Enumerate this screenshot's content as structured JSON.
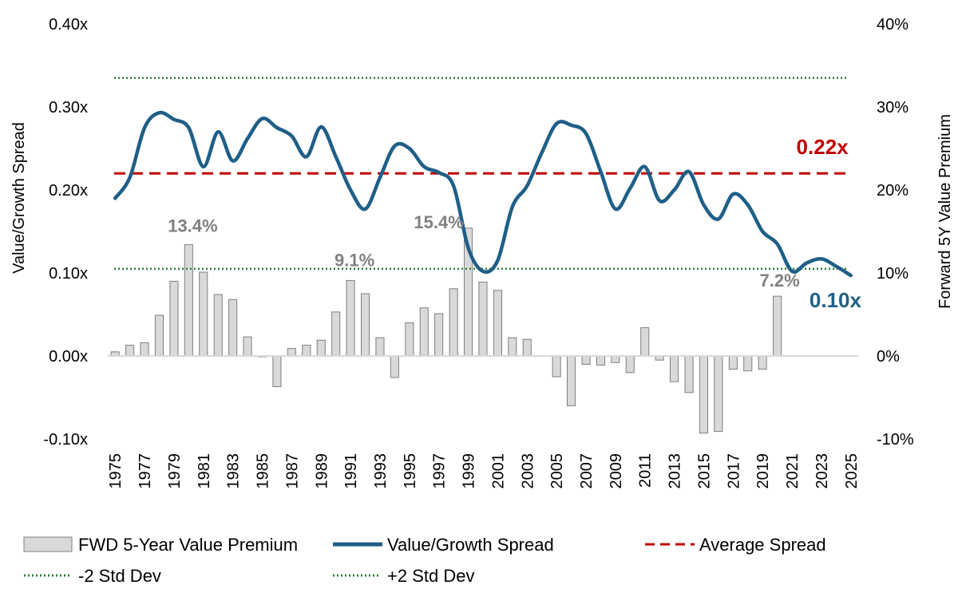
{
  "chart_data": {
    "type": "bar+line",
    "years_start": 1975,
    "years_end": 2025,
    "left_axis": {
      "title": "Value/Growth Spread",
      "ylim": [
        -0.1,
        0.4
      ],
      "ticks": [
        "-0.10x",
        "0.00x",
        "0.10x",
        "0.20x",
        "0.30x",
        "0.40x"
      ],
      "tick_values": [
        -0.1,
        0.0,
        0.1,
        0.2,
        0.3,
        0.4
      ]
    },
    "right_axis": {
      "title": "Forward 5Y Value Premium",
      "ylim": [
        -0.1,
        0.4
      ],
      "ticks": [
        "-10%",
        "0%",
        "10%",
        "20%",
        "30%",
        "40%"
      ],
      "tick_values": [
        -0.1,
        0.0,
        0.1,
        0.2,
        0.3,
        0.4
      ]
    },
    "x_ticks": [
      "1975",
      "1977",
      "1979",
      "1981",
      "1983",
      "1985",
      "1987",
      "1989",
      "1991",
      "1993",
      "1995",
      "1997",
      "1999",
      "2001",
      "2003",
      "2005",
      "2007",
      "2009",
      "2011",
      "2013",
      "2015",
      "2017",
      "2019",
      "2021",
      "2023",
      "2025"
    ],
    "series": [
      {
        "name": "FWD 5-Year Value Premium",
        "kind": "bar",
        "axis": "right",
        "color": "#d9d9d9",
        "x": [
          1975,
          1976,
          1977,
          1978,
          1979,
          1980,
          1981,
          1982,
          1983,
          1984,
          1985,
          1986,
          1987,
          1988,
          1989,
          1990,
          1991,
          1992,
          1993,
          1994,
          1995,
          1996,
          1997,
          1998,
          1999,
          2000,
          2001,
          2002,
          2003,
          2004,
          2005,
          2006,
          2007,
          2008,
          2009,
          2010,
          2011,
          2012,
          2013,
          2014,
          2015,
          2016,
          2017,
          2018,
          2019,
          2020
        ],
        "values": [
          0.005,
          0.013,
          0.016,
          0.049,
          0.09,
          0.134,
          0.101,
          0.074,
          0.068,
          0.023,
          -0.001,
          -0.037,
          0.009,
          0.013,
          0.019,
          0.053,
          0.091,
          0.075,
          0.022,
          -0.026,
          0.04,
          0.058,
          0.051,
          0.081,
          0.154,
          0.089,
          0.079,
          0.022,
          0.02,
          0.0,
          -0.025,
          -0.06,
          -0.01,
          -0.011,
          -0.008,
          -0.02,
          0.034,
          -0.005,
          -0.031,
          -0.044,
          -0.093,
          -0.091,
          -0.016,
          -0.018,
          -0.016,
          0.072
        ]
      },
      {
        "name": "Value/Growth Spread",
        "kind": "line",
        "axis": "left",
        "color": "#1f5f87",
        "x": [
          1975,
          1976,
          1977,
          1978,
          1979,
          1980,
          1981,
          1982,
          1983,
          1984,
          1985,
          1986,
          1987,
          1988,
          1989,
          1990,
          1991,
          1992,
          1993,
          1994,
          1995,
          1996,
          1997,
          1998,
          1999,
          2000,
          2001,
          2002,
          2003,
          2004,
          2005,
          2006,
          2007,
          2008,
          2009,
          2010,
          2011,
          2012,
          2013,
          2014,
          2015,
          2016,
          2017,
          2018,
          2019,
          2020,
          2021,
          2022,
          2023,
          2024,
          2025
        ],
        "values": [
          0.19,
          0.215,
          0.275,
          0.293,
          0.285,
          0.275,
          0.228,
          0.27,
          0.235,
          0.262,
          0.286,
          0.275,
          0.265,
          0.24,
          0.276,
          0.24,
          0.2,
          0.177,
          0.215,
          0.253,
          0.25,
          0.228,
          0.221,
          0.205,
          0.13,
          0.102,
          0.115,
          0.18,
          0.205,
          0.245,
          0.28,
          0.278,
          0.268,
          0.222,
          0.177,
          0.202,
          0.228,
          0.187,
          0.2,
          0.222,
          0.182,
          0.165,
          0.195,
          0.182,
          0.15,
          0.135,
          0.102,
          0.112,
          0.117,
          0.108,
          0.097
        ]
      },
      {
        "name": "Average Spread",
        "kind": "hline",
        "axis": "left",
        "color": "#c00000",
        "value": 0.22
      },
      {
        "name": "-2 Std Dev",
        "kind": "hline",
        "axis": "left",
        "color": "#2e7d32",
        "value": 0.105
      },
      {
        "name": "+2 Std Dev",
        "kind": "hline",
        "axis": "left",
        "color": "#2e7d32",
        "value": 0.335
      }
    ],
    "annotations": [
      {
        "text": "13.4%",
        "year": 1980,
        "value": 0.134,
        "color": "#808080"
      },
      {
        "text": "9.1%",
        "year": 1991,
        "value": 0.091,
        "color": "#808080"
      },
      {
        "text": "15.4%",
        "year": 1999,
        "value": 0.154,
        "color": "#808080"
      },
      {
        "text": "7.2%",
        "year": 2020,
        "value": 0.072,
        "color": "#808080"
      },
      {
        "text": "0.22x",
        "year": 2021,
        "value": 0.22,
        "color": "#c00000"
      },
      {
        "text": "0.10x",
        "year": 2024,
        "value": 0.097,
        "color": "#1f5f87"
      }
    ],
    "legend": [
      {
        "label": "FWD 5-Year Value Premium",
        "kind": "bar"
      },
      {
        "label": "Value/Growth Spread",
        "kind": "line"
      },
      {
        "label": "Average Spread",
        "kind": "dash"
      },
      {
        "label": "-2 Std Dev",
        "kind": "dot"
      },
      {
        "label": "+2 Std Dev",
        "kind": "dot"
      }
    ],
    "legend_position": "bottom"
  }
}
